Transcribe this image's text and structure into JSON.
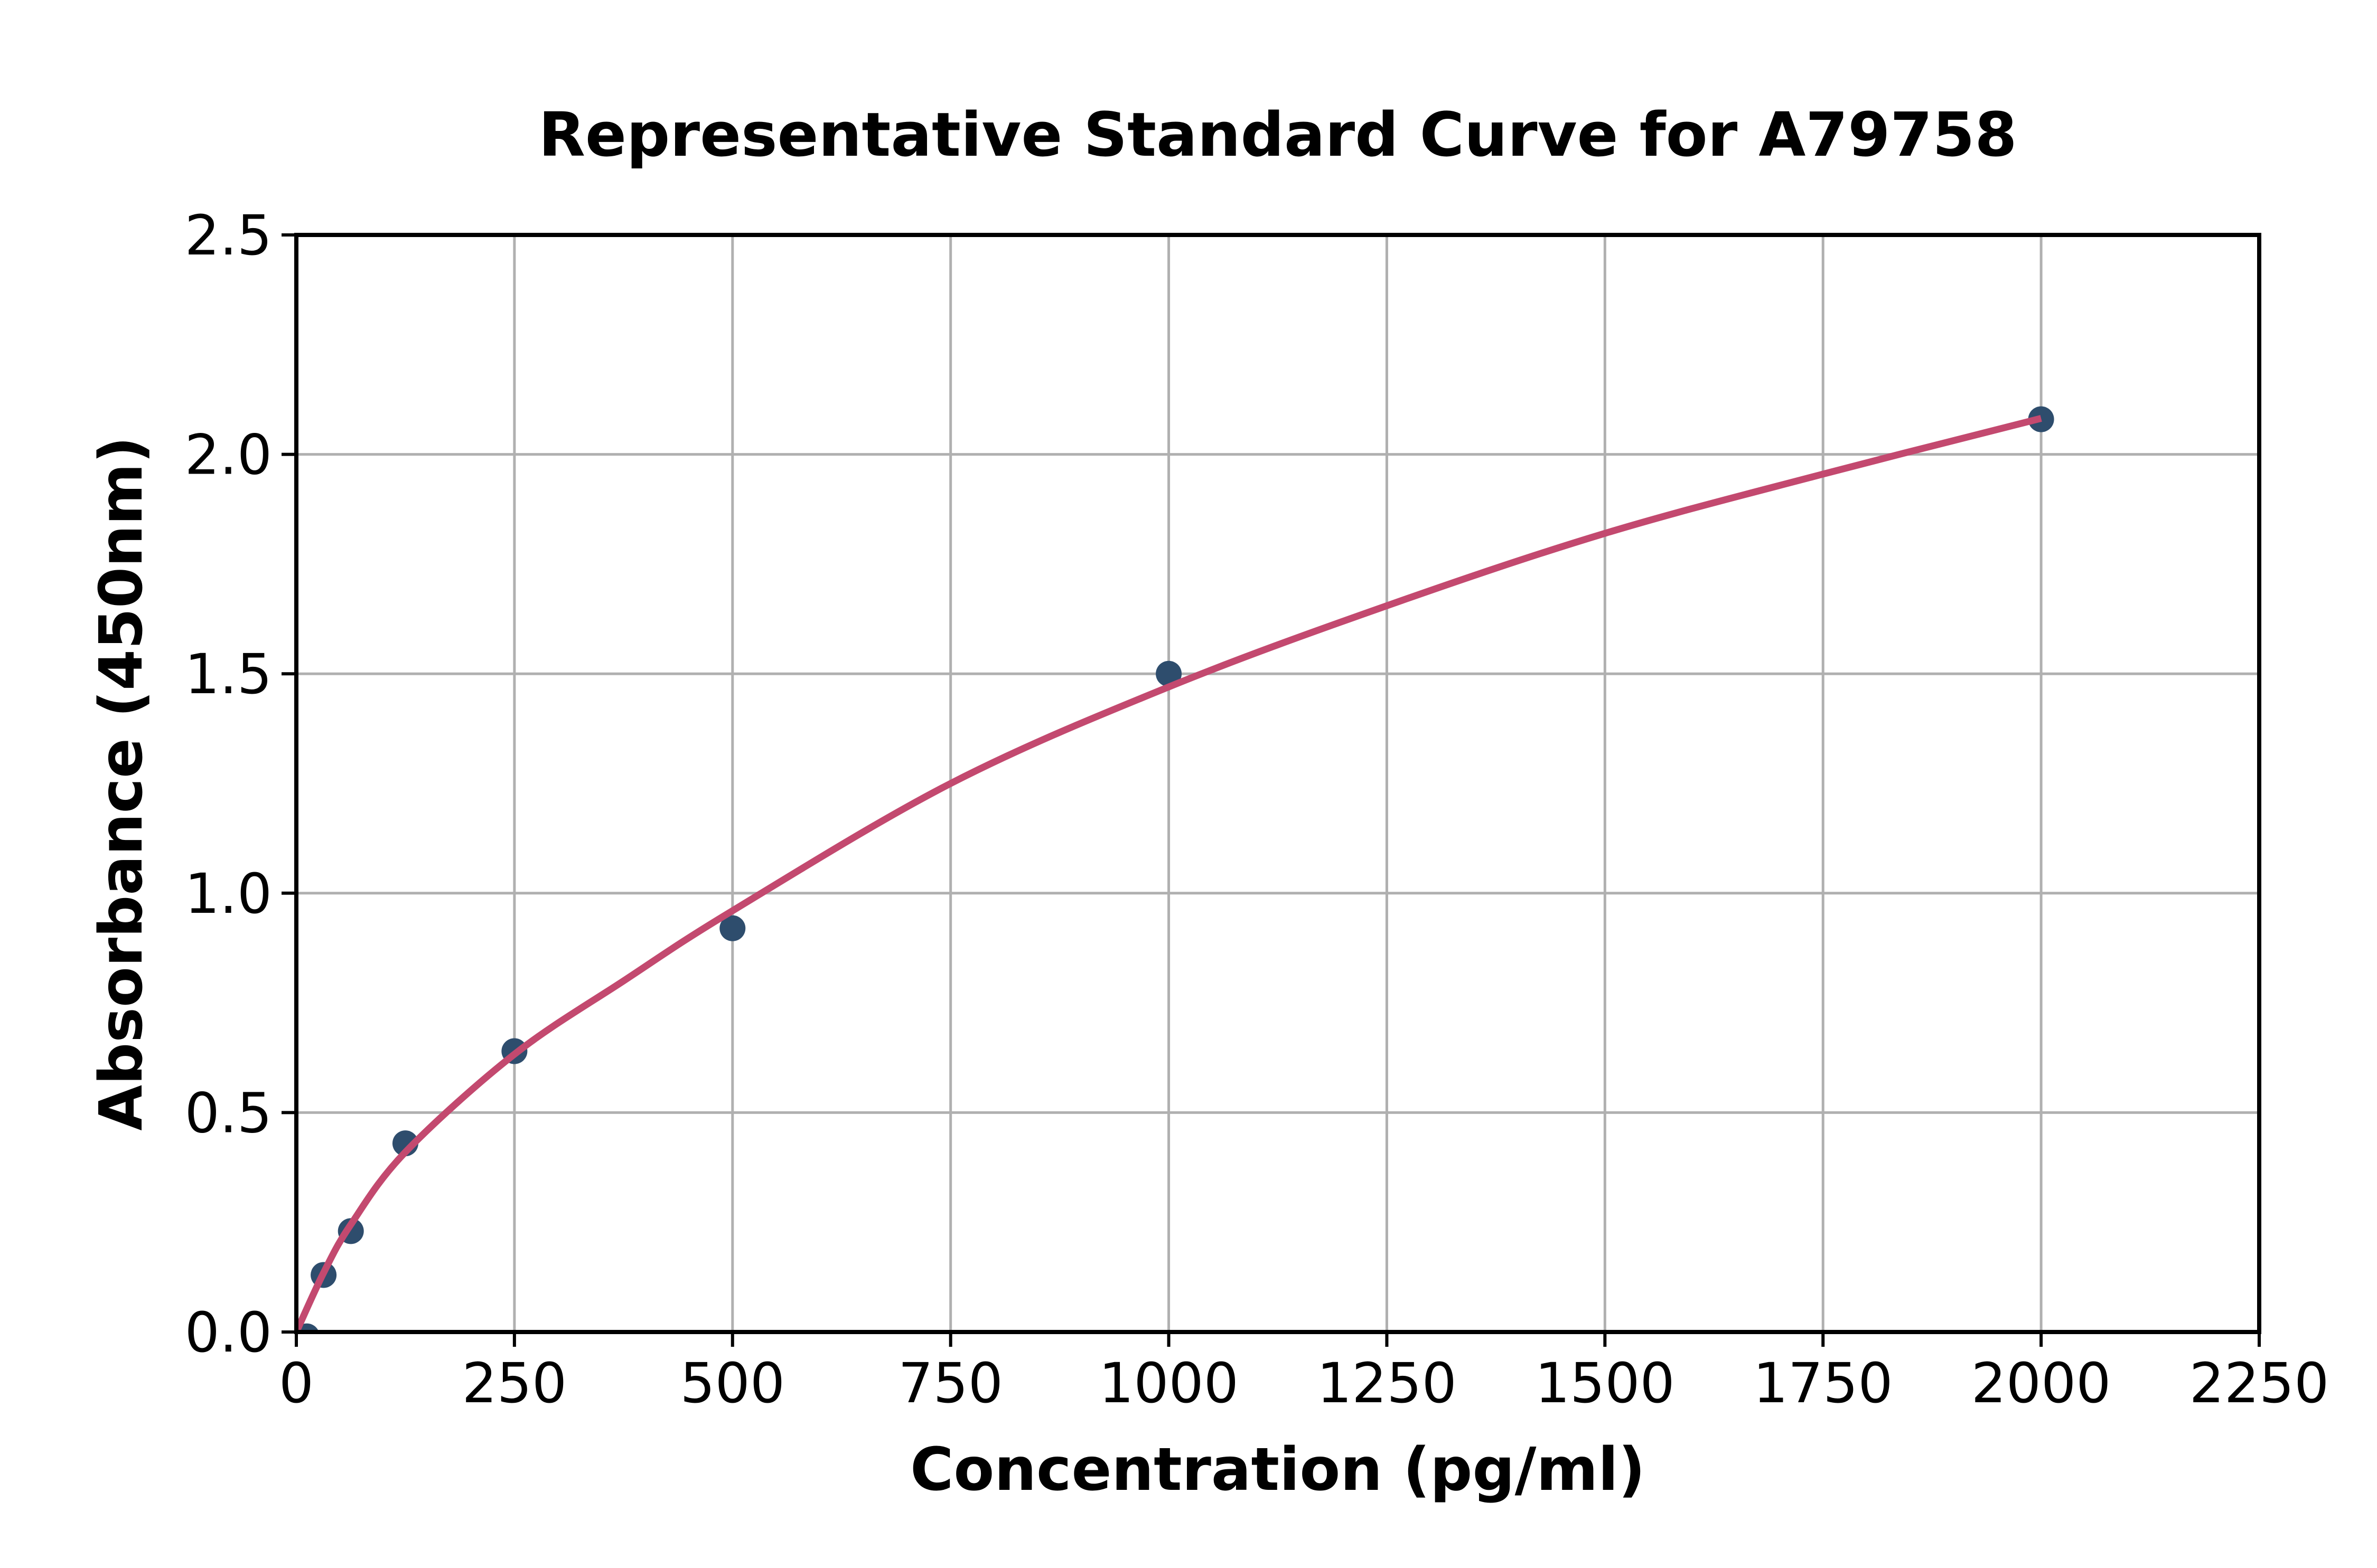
{
  "page": {
    "background_color": "#ffffff"
  },
  "chart_data": {
    "type": "scatter",
    "title": "Representative Standard Curve for A79758",
    "xlabel": "Concentration (pg/ml)",
    "ylabel": "Absorbance (450nm)",
    "xlim": [
      0,
      2250
    ],
    "ylim": [
      0,
      2.5
    ],
    "grid": true,
    "legend": false,
    "grid_color": "#b0b0b0",
    "axis_color": "#000000",
    "text_color": "#000000",
    "marker_color": "#2e4d6d",
    "curve_color": "#c3496f",
    "x_ticks": [
      {
        "value": 0,
        "label": "0"
      },
      {
        "value": 250,
        "label": "250"
      },
      {
        "value": 500,
        "label": "500"
      },
      {
        "value": 750,
        "label": "750"
      },
      {
        "value": 1000,
        "label": "1000"
      },
      {
        "value": 1250,
        "label": "1250"
      },
      {
        "value": 1500,
        "label": "1500"
      },
      {
        "value": 1750,
        "label": "1750"
      },
      {
        "value": 2000,
        "label": "2000"
      },
      {
        "value": 2250,
        "label": "2250"
      }
    ],
    "y_ticks": [
      {
        "value": 0,
        "label": "0.0"
      },
      {
        "value": 0.5,
        "label": "0.5"
      },
      {
        "value": 1,
        "label": "1.0"
      },
      {
        "value": 1.5,
        "label": "1.5"
      },
      {
        "value": 2,
        "label": "2.0"
      },
      {
        "value": 2.5,
        "label": "2.5"
      }
    ],
    "series": [
      {
        "name": "standard-points",
        "type": "scatter",
        "color": "#2e4d6d",
        "points": [
          {
            "x": 12,
            "y": -0.01
          },
          {
            "x": 31.25,
            "y": 0.13
          },
          {
            "x": 62.5,
            "y": 0.23
          },
          {
            "x": 125,
            "y": 0.43
          },
          {
            "x": 250,
            "y": 0.64
          },
          {
            "x": 500,
            "y": 0.92
          },
          {
            "x": 1000,
            "y": 1.5
          },
          {
            "x": 2000,
            "y": 2.08
          }
        ]
      },
      {
        "name": "fit-curve",
        "type": "line",
        "color": "#c3496f",
        "points": [
          [
            0,
            0
          ],
          [
            31.25,
            0.135
          ],
          [
            62.5,
            0.245
          ],
          [
            125,
            0.41
          ],
          [
            250,
            0.633
          ],
          [
            375,
            0.8
          ],
          [
            500,
            0.96
          ],
          [
            750,
            1.25
          ],
          [
            1000,
            1.47
          ],
          [
            1250,
            1.655
          ],
          [
            1500,
            1.82
          ],
          [
            1750,
            1.955
          ],
          [
            2000,
            2.082
          ]
        ]
      }
    ]
  }
}
